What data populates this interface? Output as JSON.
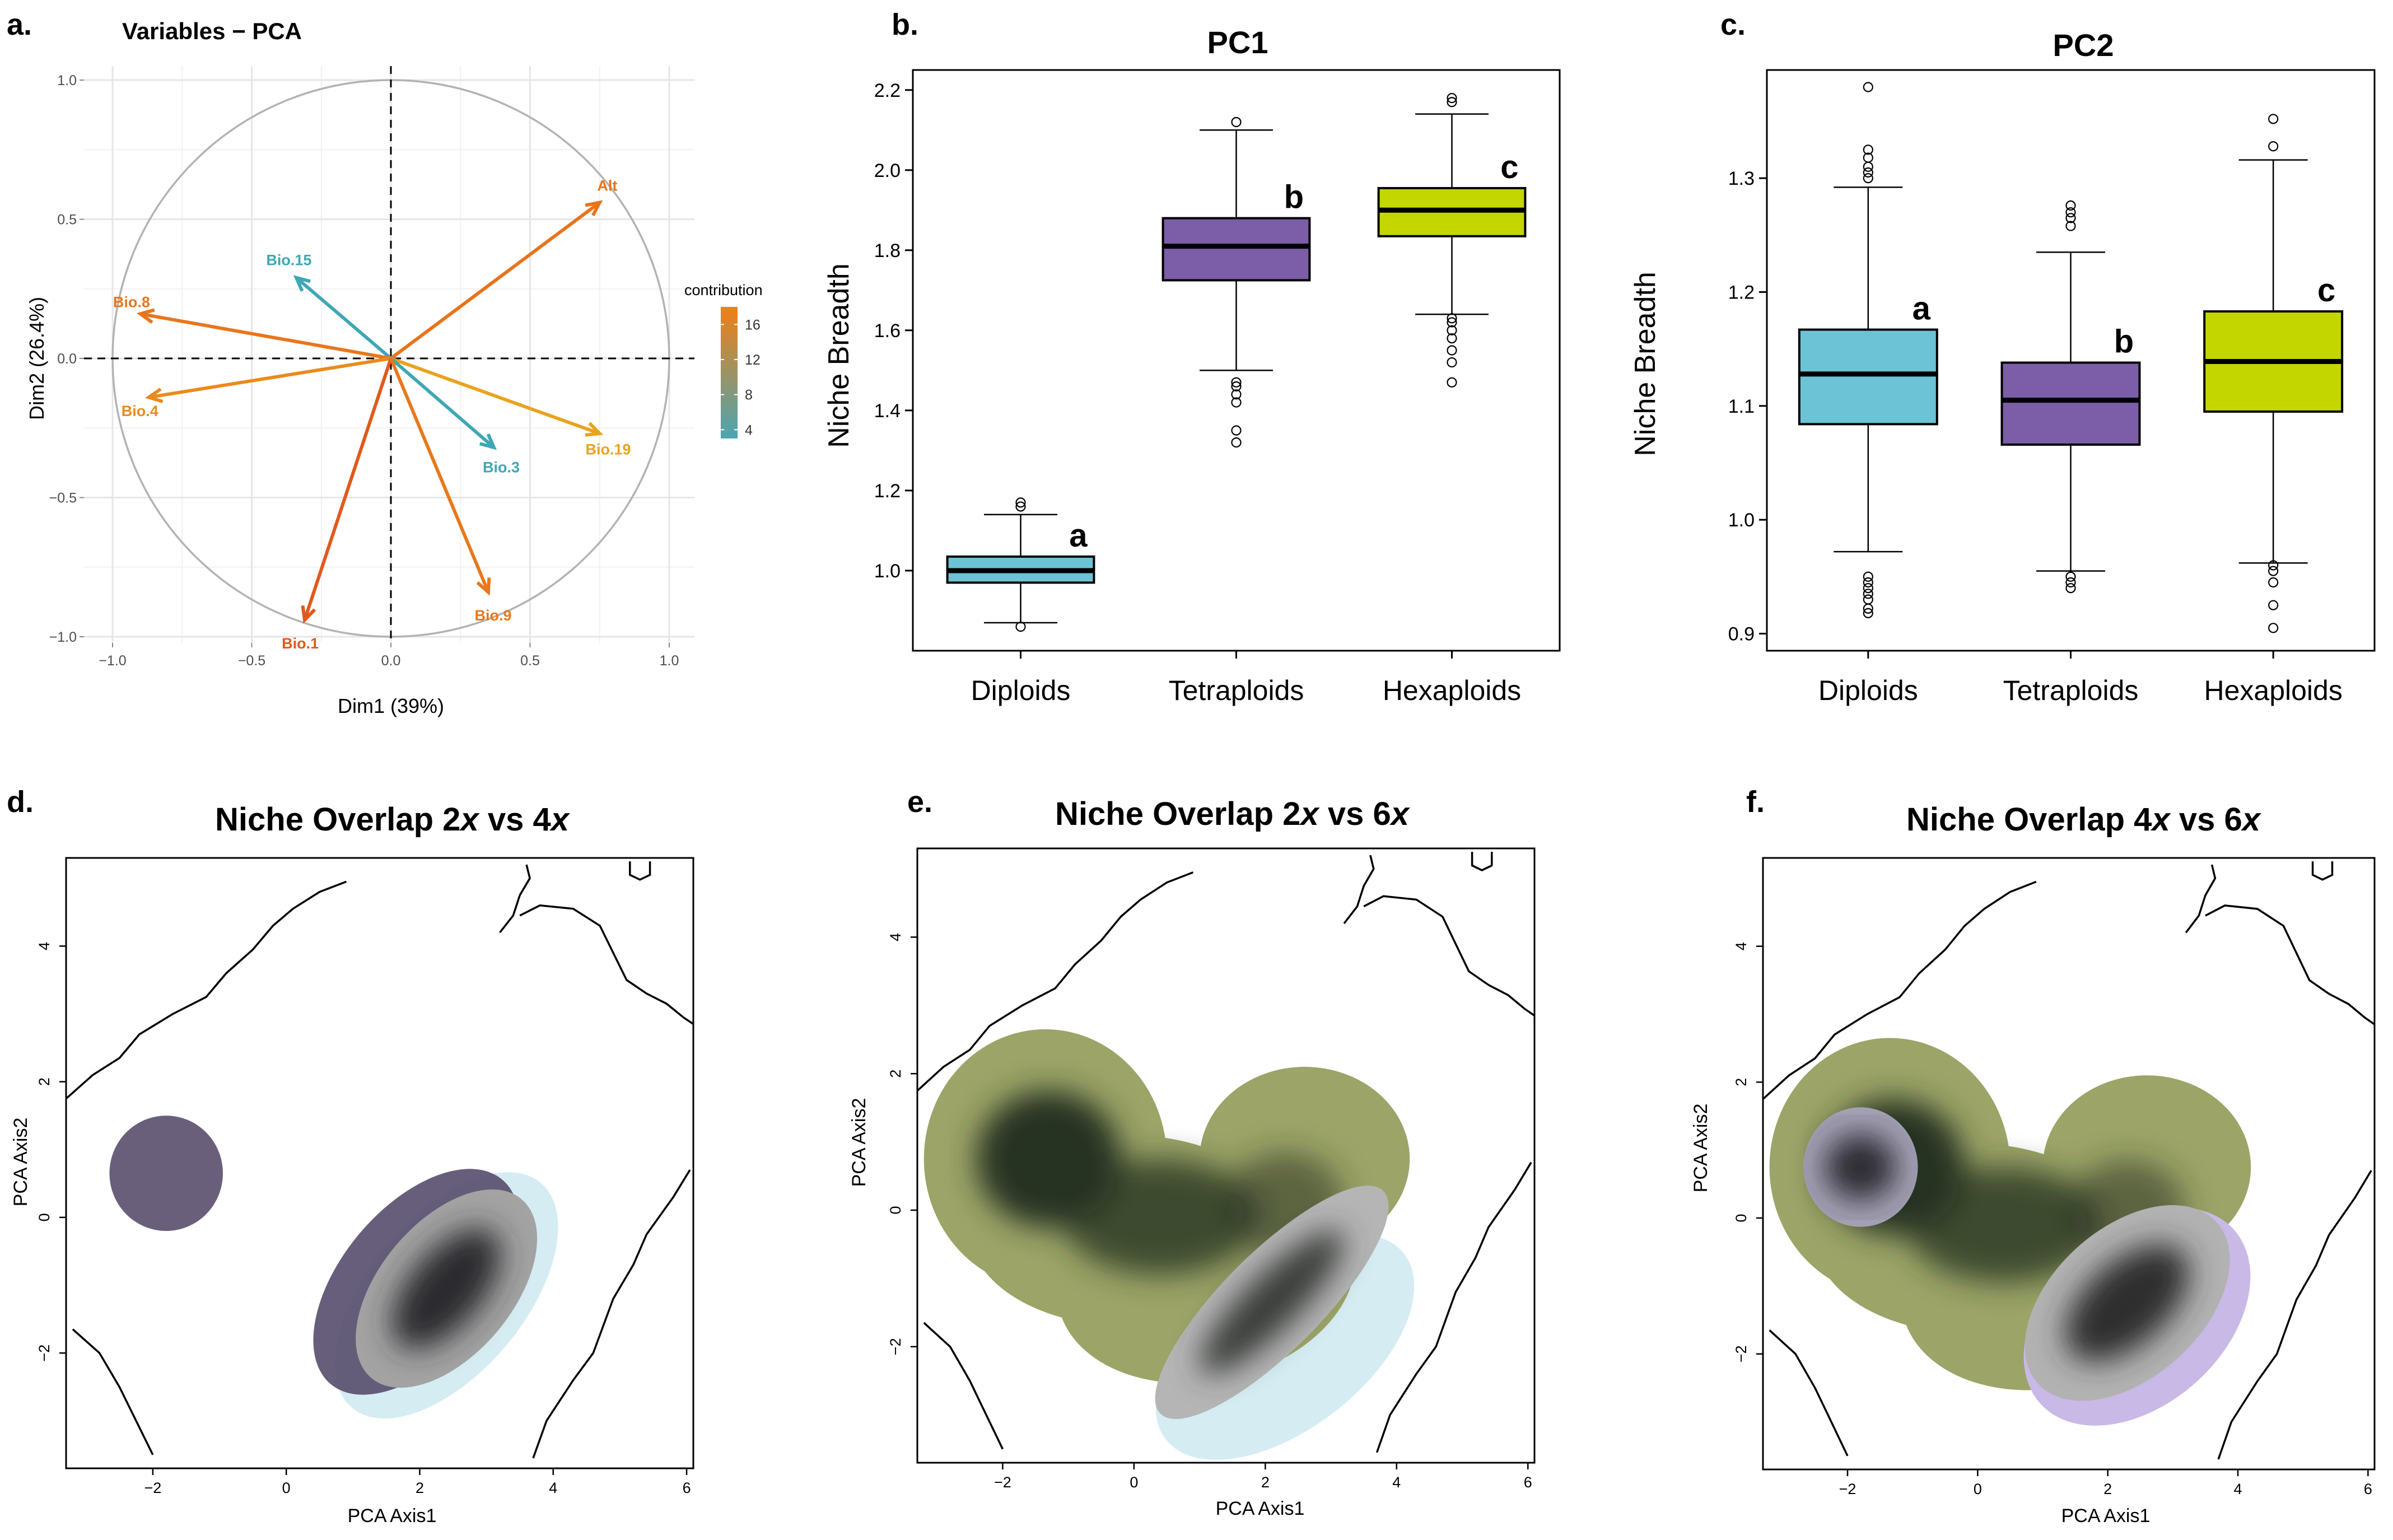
{
  "panels": {
    "a": {
      "letter": "a.",
      "title": "Variables − PCA"
    },
    "b": {
      "letter": "b.",
      "title": "PC1"
    },
    "c": {
      "letter": "c.",
      "title": "PC2"
    },
    "d": {
      "letter": "d.",
      "title_pre": "Niche Overlap 2",
      "title_x1": "x",
      "title_mid": " vs 4",
      "title_x2": "x"
    },
    "e": {
      "letter": "e.",
      "title_pre": "Niche Overlap 2",
      "title_x1": "x",
      "title_mid": " vs 6",
      "title_x2": "x"
    },
    "f": {
      "letter": "f.",
      "title_pre": "Niche Overlap 4",
      "title_x1": "x",
      "title_mid": " vs 6",
      "title_x2": "x"
    }
  },
  "colors": {
    "diploid": "#6cc3d5",
    "tetraploid": "#7b5ea7",
    "hexaploid": "#c3d600",
    "contrib_low": "#4aa6b2",
    "contrib_high": "#f07f16"
  },
  "chart_data": [
    {
      "id": "a",
      "type": "scatter",
      "subtype": "pca-variable-correlation-circle",
      "title": "Variables − PCA",
      "xlabel": "Dim1 (39%)",
      "ylabel": "Dim2 (26.4%)",
      "xlim": [
        -1.0,
        1.0
      ],
      "ylim": [
        -1.0,
        1.0
      ],
      "x_ticks": [
        -1.0,
        -0.5,
        0.0,
        0.5,
        1.0
      ],
      "y_ticks": [
        -1.0,
        -0.5,
        0.0,
        0.5,
        1.0
      ],
      "x_tick_labels": [
        "−1.0",
        "−0.5",
        "0.0",
        "0.5",
        "1.0"
      ],
      "y_tick_labels": [
        "−1.0",
        "−0.5",
        "0.0",
        "0.5",
        "1.0"
      ],
      "legend": {
        "title": "contribution",
        "ticks": [
          16,
          12,
          8,
          4
        ],
        "range": [
          3,
          18
        ],
        "position": "right"
      },
      "vectors": [
        {
          "name": "Alt",
          "x": 0.75,
          "y": 0.56,
          "contribution": 15.5,
          "color": "#e8741a"
        },
        {
          "name": "Bio.15",
          "x": -0.34,
          "y": 0.29,
          "contribution": 3.5,
          "color": "#3fa7b5"
        },
        {
          "name": "Bio.8",
          "x": -0.9,
          "y": 0.16,
          "contribution": 15.0,
          "color": "#e8761c"
        },
        {
          "name": "Bio.4",
          "x": -0.87,
          "y": -0.14,
          "contribution": 13.5,
          "color": "#ea8a1c"
        },
        {
          "name": "Bio.19",
          "x": 0.75,
          "y": -0.27,
          "contribution": 11.0,
          "color": "#eaa21e"
        },
        {
          "name": "Bio.3",
          "x": 0.37,
          "y": -0.32,
          "contribution": 4.0,
          "color": "#3fa7b5"
        },
        {
          "name": "Bio.1",
          "x": -0.31,
          "y": -0.94,
          "contribution": 18.0,
          "color": "#e05a1c"
        },
        {
          "name": "Bio.9",
          "x": 0.35,
          "y": -0.84,
          "contribution": 14.5,
          "color": "#e8781c"
        }
      ]
    },
    {
      "id": "b",
      "type": "box",
      "title": "PC1",
      "ylabel": "Niche Breadth",
      "ylim": [
        0.8,
        2.25
      ],
      "y_ticks": [
        1.0,
        1.2,
        1.4,
        1.6,
        1.8,
        2.0,
        2.2
      ],
      "y_tick_labels": [
        "1.0",
        "1.2",
        "1.4",
        "1.6",
        "1.8",
        "2.0",
        "2.2"
      ],
      "categories": [
        "Diploids",
        "Tetraploids",
        "Hexaploids"
      ],
      "boxes": [
        {
          "category": "Diploids",
          "min": 0.87,
          "q1": 0.97,
          "median": 1.0,
          "q3": 1.035,
          "max": 1.14,
          "outliers": [
            0.86,
            1.16,
            1.17
          ],
          "letter": "a"
        },
        {
          "category": "Tetraploids",
          "min": 1.5,
          "q1": 1.725,
          "median": 1.81,
          "q3": 1.88,
          "max": 2.1,
          "outliers": [
            1.32,
            1.35,
            1.42,
            1.44,
            1.46,
            1.47,
            2.12
          ],
          "letter": "b"
        },
        {
          "category": "Hexaploids",
          "min": 1.64,
          "q1": 1.835,
          "median": 1.9,
          "q3": 1.955,
          "max": 2.14,
          "outliers": [
            1.47,
            1.52,
            1.55,
            1.58,
            1.6,
            1.62,
            1.63,
            2.17,
            2.18
          ],
          "letter": "c"
        }
      ]
    },
    {
      "id": "c",
      "type": "box",
      "title": "PC2",
      "ylabel": "Niche Breadth",
      "ylim": [
        0.885,
        1.395
      ],
      "y_ticks": [
        0.9,
        1.0,
        1.1,
        1.2,
        1.3
      ],
      "y_tick_labels": [
        "0.9",
        "1.0",
        "1.1",
        "1.2",
        "1.3"
      ],
      "categories": [
        "Diploids",
        "Tetraploids",
        "Hexaploids"
      ],
      "boxes": [
        {
          "category": "Diploids",
          "min": 0.972,
          "q1": 1.084,
          "median": 1.128,
          "q3": 1.167,
          "max": 1.292,
          "outliers": [
            0.918,
            0.922,
            0.93,
            0.935,
            0.94,
            0.945,
            0.95,
            1.3,
            1.305,
            1.31,
            1.318,
            1.325,
            1.38
          ],
          "letter": "a"
        },
        {
          "category": "Tetraploids",
          "min": 0.955,
          "q1": 1.066,
          "median": 1.105,
          "q3": 1.138,
          "max": 1.235,
          "outliers": [
            0.94,
            0.945,
            0.95,
            1.258,
            1.265,
            1.27,
            1.276
          ],
          "letter": "b"
        },
        {
          "category": "Hexaploids",
          "min": 0.962,
          "q1": 1.095,
          "median": 1.139,
          "q3": 1.183,
          "max": 1.316,
          "outliers": [
            0.905,
            0.925,
            0.945,
            0.955,
            0.96,
            1.328,
            1.352
          ],
          "letter": "c"
        }
      ]
    },
    {
      "id": "d",
      "type": "heatmap",
      "subtype": "niche-overlap-density",
      "title": "Niche Overlap 2x vs 4x",
      "xlabel": "PCA Axis1",
      "ylabel": "PCA Axis2",
      "xlim": [
        -3.3,
        6.1
      ],
      "ylim": [
        -3.7,
        5.3
      ],
      "x_ticks": [
        -2,
        0,
        2,
        4,
        6
      ],
      "y_ticks": [
        -2,
        0,
        2,
        4
      ],
      "x_tick_labels": [
        "−2",
        "0",
        "2",
        "4",
        "6"
      ],
      "y_tick_labels": [
        "−2",
        "0",
        "2",
        "4"
      ],
      "layers": [
        {
          "kind": "ellipse",
          "cx": 2.4,
          "cy": -1.15,
          "rx": 2.2,
          "ry": 1.15,
          "angle": 50,
          "fill": "#d5ecf3",
          "opacity": 1.0
        },
        {
          "kind": "ellipse",
          "cx": -1.8,
          "cy": 0.65,
          "rx": 0.85,
          "ry": 0.85,
          "angle": 0,
          "fill": "#625674",
          "opacity": 0.95
        },
        {
          "kind": "ellipse",
          "cx": 1.95,
          "cy": -0.95,
          "rx": 2.0,
          "ry": 1.1,
          "angle": 50,
          "fill": "#5a5070",
          "opacity": 0.92
        },
        {
          "kind": "blob",
          "cx": 2.4,
          "cy": -1.05,
          "rx": 1.75,
          "ry": 0.98,
          "angle": 50,
          "core": "#2a2b2f",
          "edge": "#a3a3a3"
        }
      ],
      "contours": 4
    },
    {
      "id": "e",
      "type": "heatmap",
      "subtype": "niche-overlap-density",
      "title": "Niche Overlap 2x vs 6x",
      "xlabel": "PCA Axis1",
      "ylabel": "PCA Axis2",
      "xlim": [
        -3.3,
        6.1
      ],
      "ylim": [
        -3.7,
        5.3
      ],
      "x_ticks": [
        -2,
        0,
        2,
        4,
        6
      ],
      "y_ticks": [
        -2,
        0,
        2,
        4
      ],
      "x_tick_labels": [
        "−2",
        "0",
        "2",
        "4",
        "6"
      ],
      "y_tick_labels": [
        "−2",
        "0",
        "2",
        "4"
      ],
      "layers": [
        {
          "kind": "ellipse",
          "cx": 2.3,
          "cy": -2.0,
          "rx": 2.3,
          "ry": 1.2,
          "angle": 38,
          "fill": "#d5ecf3",
          "opacity": 1.0
        },
        {
          "kind": "heart",
          "fill": "#9ca468",
          "core": "#273223"
        },
        {
          "kind": "blob",
          "cx": 2.1,
          "cy": -1.35,
          "rx": 2.4,
          "ry": 0.72,
          "angle": 45,
          "core": "#3a3d3a",
          "edge": "#b5b5b5"
        }
      ],
      "contours": 4
    },
    {
      "id": "f",
      "type": "heatmap",
      "subtype": "niche-overlap-density",
      "title": "Niche Overlap 4x vs 6x",
      "xlabel": "PCA Axis1",
      "ylabel": "PCA Axis2",
      "xlim": [
        -3.3,
        6.1
      ],
      "ylim": [
        -3.7,
        5.3
      ],
      "x_ticks": [
        -2,
        0,
        2,
        4,
        6
      ],
      "y_ticks": [
        -2,
        0,
        2,
        4
      ],
      "x_tick_labels": [
        "−2",
        "0",
        "2",
        "4",
        "6"
      ],
      "y_tick_labels": [
        "−2",
        "0",
        "2",
        "4"
      ],
      "layers": [
        {
          "kind": "heart",
          "fill": "#9ca468",
          "core": "#273223"
        },
        {
          "kind": "ellipse",
          "cx": 2.45,
          "cy": -1.45,
          "rx": 2.0,
          "ry": 1.3,
          "angle": 42,
          "fill": "#c8b9e6",
          "opacity": 1.0
        },
        {
          "kind": "blob",
          "cx": 2.3,
          "cy": -1.25,
          "rx": 1.85,
          "ry": 1.1,
          "angle": 42,
          "core": "#2e2f2f",
          "edge": "#b2b2b2"
        },
        {
          "kind": "blob",
          "cx": -1.8,
          "cy": 0.75,
          "rx": 0.88,
          "ry": 0.88,
          "angle": 0,
          "core": "#2c2b30",
          "edge": "#a4a0b4"
        }
      ],
      "contours": 4
    }
  ]
}
